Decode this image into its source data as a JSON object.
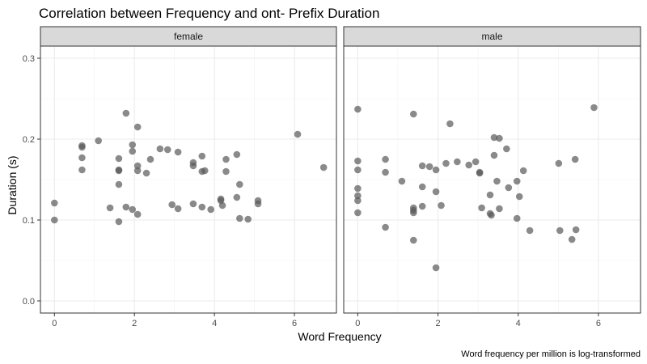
{
  "chart_data": {
    "type": "scatter",
    "title": "Correlation between Frequency and ont- Prefix Duration",
    "xlabel": "Word Frequency",
    "ylabel": "Duration (s)",
    "caption": "Word frequency per million is log-transformed",
    "xlim": [
      -0.35,
      7.05
    ],
    "ylim": [
      -0.015,
      0.315
    ],
    "x_ticks": [
      0,
      2,
      4,
      6
    ],
    "x_tick_labels": [
      "0",
      "2",
      "4",
      "6"
    ],
    "y_ticks": [
      0.0,
      0.1,
      0.2,
      0.3
    ],
    "y_tick_labels": [
      "0.0",
      "0.1",
      "0.2",
      "0.3"
    ],
    "grid": true,
    "point_color": "#595959",
    "panel_border_color": "#333333",
    "strip_fill": "#d9d9d9",
    "panels": [
      {
        "facet": "female",
        "points": [
          {
            "x": 0.0,
            "y": 0.121
          },
          {
            "x": 0.0,
            "y": 0.1
          },
          {
            "x": 0.69,
            "y": 0.19
          },
          {
            "x": 0.69,
            "y": 0.192
          },
          {
            "x": 0.69,
            "y": 0.177
          },
          {
            "x": 0.69,
            "y": 0.162
          },
          {
            "x": 1.1,
            "y": 0.198
          },
          {
            "x": 1.39,
            "y": 0.115
          },
          {
            "x": 1.61,
            "y": 0.176
          },
          {
            "x": 1.61,
            "y": 0.162
          },
          {
            "x": 1.61,
            "y": 0.161
          },
          {
            "x": 1.61,
            "y": 0.144
          },
          {
            "x": 1.61,
            "y": 0.098
          },
          {
            "x": 1.79,
            "y": 0.232
          },
          {
            "x": 1.79,
            "y": 0.116
          },
          {
            "x": 1.95,
            "y": 0.193
          },
          {
            "x": 1.95,
            "y": 0.185
          },
          {
            "x": 1.95,
            "y": 0.113
          },
          {
            "x": 2.08,
            "y": 0.215
          },
          {
            "x": 2.08,
            "y": 0.167
          },
          {
            "x": 2.08,
            "y": 0.161
          },
          {
            "x": 2.08,
            "y": 0.107
          },
          {
            "x": 2.3,
            "y": 0.158
          },
          {
            "x": 2.4,
            "y": 0.175
          },
          {
            "x": 2.64,
            "y": 0.188
          },
          {
            "x": 2.83,
            "y": 0.187
          },
          {
            "x": 2.94,
            "y": 0.119
          },
          {
            "x": 3.09,
            "y": 0.184
          },
          {
            "x": 3.09,
            "y": 0.114
          },
          {
            "x": 3.47,
            "y": 0.171
          },
          {
            "x": 3.47,
            "y": 0.167
          },
          {
            "x": 3.47,
            "y": 0.12
          },
          {
            "x": 3.69,
            "y": 0.179
          },
          {
            "x": 3.69,
            "y": 0.16
          },
          {
            "x": 3.69,
            "y": 0.116
          },
          {
            "x": 3.76,
            "y": 0.161
          },
          {
            "x": 3.91,
            "y": 0.113
          },
          {
            "x": 4.16,
            "y": 0.126
          },
          {
            "x": 4.16,
            "y": 0.124
          },
          {
            "x": 4.2,
            "y": 0.118
          },
          {
            "x": 4.29,
            "y": 0.175
          },
          {
            "x": 4.29,
            "y": 0.16
          },
          {
            "x": 4.56,
            "y": 0.181
          },
          {
            "x": 4.56,
            "y": 0.128
          },
          {
            "x": 4.63,
            "y": 0.144
          },
          {
            "x": 4.63,
            "y": 0.102
          },
          {
            "x": 4.84,
            "y": 0.101
          },
          {
            "x": 5.09,
            "y": 0.124
          },
          {
            "x": 5.09,
            "y": 0.12
          },
          {
            "x": 6.08,
            "y": 0.206
          },
          {
            "x": 6.73,
            "y": 0.165
          }
        ]
      },
      {
        "facet": "male",
        "points": [
          {
            "x": 0.0,
            "y": 0.237
          },
          {
            "x": 0.0,
            "y": 0.173
          },
          {
            "x": 0.0,
            "y": 0.162
          },
          {
            "x": 0.0,
            "y": 0.139
          },
          {
            "x": 0.0,
            "y": 0.13
          },
          {
            "x": 0.0,
            "y": 0.124
          },
          {
            "x": 0.0,
            "y": 0.109
          },
          {
            "x": 0.69,
            "y": 0.175
          },
          {
            "x": 0.69,
            "y": 0.159
          },
          {
            "x": 0.69,
            "y": 0.091
          },
          {
            "x": 1.1,
            "y": 0.148
          },
          {
            "x": 1.39,
            "y": 0.231
          },
          {
            "x": 1.39,
            "y": 0.115
          },
          {
            "x": 1.39,
            "y": 0.112
          },
          {
            "x": 1.39,
            "y": 0.109
          },
          {
            "x": 1.39,
            "y": 0.075
          },
          {
            "x": 1.61,
            "y": 0.167
          },
          {
            "x": 1.61,
            "y": 0.141
          },
          {
            "x": 1.61,
            "y": 0.117
          },
          {
            "x": 1.79,
            "y": 0.166
          },
          {
            "x": 1.95,
            "y": 0.162
          },
          {
            "x": 1.95,
            "y": 0.135
          },
          {
            "x": 1.95,
            "y": 0.041
          },
          {
            "x": 2.08,
            "y": 0.118
          },
          {
            "x": 2.2,
            "y": 0.17
          },
          {
            "x": 2.3,
            "y": 0.219
          },
          {
            "x": 2.48,
            "y": 0.172
          },
          {
            "x": 2.77,
            "y": 0.168
          },
          {
            "x": 2.94,
            "y": 0.172
          },
          {
            "x": 3.04,
            "y": 0.159
          },
          {
            "x": 3.04,
            "y": 0.158
          },
          {
            "x": 3.09,
            "y": 0.115
          },
          {
            "x": 3.3,
            "y": 0.131
          },
          {
            "x": 3.3,
            "y": 0.108
          },
          {
            "x": 3.33,
            "y": 0.106
          },
          {
            "x": 3.4,
            "y": 0.202
          },
          {
            "x": 3.4,
            "y": 0.18
          },
          {
            "x": 3.47,
            "y": 0.148
          },
          {
            "x": 3.53,
            "y": 0.201
          },
          {
            "x": 3.53,
            "y": 0.114
          },
          {
            "x": 3.71,
            "y": 0.188
          },
          {
            "x": 3.76,
            "y": 0.14
          },
          {
            "x": 3.97,
            "y": 0.148
          },
          {
            "x": 3.97,
            "y": 0.102
          },
          {
            "x": 4.03,
            "y": 0.129
          },
          {
            "x": 4.13,
            "y": 0.161
          },
          {
            "x": 4.29,
            "y": 0.087
          },
          {
            "x": 5.01,
            "y": 0.17
          },
          {
            "x": 5.04,
            "y": 0.087
          },
          {
            "x": 5.34,
            "y": 0.076
          },
          {
            "x": 5.42,
            "y": 0.175
          },
          {
            "x": 5.44,
            "y": 0.088
          },
          {
            "x": 5.89,
            "y": 0.239
          }
        ]
      }
    ]
  }
}
